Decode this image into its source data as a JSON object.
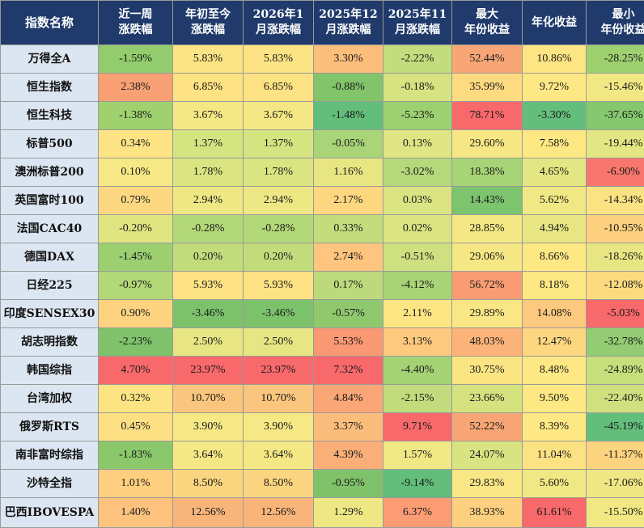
{
  "columns": [
    {
      "line1": "指数名称",
      "line2": ""
    },
    {
      "line1": "近一周",
      "line2": "涨跌幅"
    },
    {
      "line1": "年初至今",
      "line2": "涨跌幅"
    },
    {
      "line1": "2026年1",
      "line2": "月涨跌幅"
    },
    {
      "line1": "2025年12",
      "line2": "月涨跌幅"
    },
    {
      "line1": "2025年11",
      "line2": "月涨跌幅"
    },
    {
      "line1": "最大",
      "line2": "年份收益"
    },
    {
      "line1": "年化收益",
      "line2": ""
    },
    {
      "line1": "最小",
      "line2": "年份收益"
    }
  ],
  "rows": [
    {
      "name": "万得全A",
      "cells": [
        {
          "v": "-1.59%",
          "bg": "#92cc6c"
        },
        {
          "v": "5.83%",
          "bg": "#fce383"
        },
        {
          "v": "5.83%",
          "bg": "#fce383"
        },
        {
          "v": "3.30%",
          "bg": "#fcbe7b"
        },
        {
          "v": "-2.22%",
          "bg": "#c3dc7d"
        },
        {
          "v": "52.44%",
          "bg": "#f8a676"
        },
        {
          "v": "10.86%",
          "bg": "#fde583"
        },
        {
          "v": "-28.25%",
          "bg": "#9fd070"
        }
      ]
    },
    {
      "name": "恒生指数",
      "cells": [
        {
          "v": "2.38%",
          "bg": "#f8a073"
        },
        {
          "v": "6.85%",
          "bg": "#fce282"
        },
        {
          "v": "6.85%",
          "bg": "#fce282"
        },
        {
          "v": "-0.88%",
          "bg": "#82c46a"
        },
        {
          "v": "-0.18%",
          "bg": "#d7e281"
        },
        {
          "v": "35.99%",
          "bg": "#fedb81"
        },
        {
          "v": "9.72%",
          "bg": "#fee884"
        },
        {
          "v": "-15.46%",
          "bg": "#f1e884"
        }
      ]
    },
    {
      "name": "恒生科技",
      "cells": [
        {
          "v": "-1.38%",
          "bg": "#9fd16e"
        },
        {
          "v": "3.67%",
          "bg": "#f4e884"
        },
        {
          "v": "3.67%",
          "bg": "#f4e884"
        },
        {
          "v": "-1.48%",
          "bg": "#63be7b"
        },
        {
          "v": "-5.23%",
          "bg": "#9cd071"
        },
        {
          "v": "78.71%",
          "bg": "#f8696b"
        },
        {
          "v": "-3.30%",
          "bg": "#63be7b"
        },
        {
          "v": "-37.65%",
          "bg": "#86c86f"
        }
      ]
    },
    {
      "name": "标普500",
      "cells": [
        {
          "v": "0.34%",
          "bg": "#fde383"
        },
        {
          "v": "1.37%",
          "bg": "#d4e480"
        },
        {
          "v": "1.37%",
          "bg": "#d4e480"
        },
        {
          "v": "-0.05%",
          "bg": "#a9d477"
        },
        {
          "v": "0.13%",
          "bg": "#dfe582"
        },
        {
          "v": "29.60%",
          "bg": "#f7e784"
        },
        {
          "v": "7.58%",
          "bg": "#fee884"
        },
        {
          "v": "-19.44%",
          "bg": "#e3e683"
        }
      ]
    },
    {
      "name": "澳洲标普200",
      "cells": [
        {
          "v": "0.10%",
          "bg": "#f6e884"
        },
        {
          "v": "1.78%",
          "bg": "#dae581"
        },
        {
          "v": "1.78%",
          "bg": "#dae581"
        },
        {
          "v": "1.16%",
          "bg": "#e7e683"
        },
        {
          "v": "-3.02%",
          "bg": "#b4d87a"
        },
        {
          "v": "18.38%",
          "bg": "#a7d476"
        },
        {
          "v": "4.65%",
          "bg": "#e4e683"
        },
        {
          "v": "-6.90%",
          "bg": "#f8766d"
        }
      ]
    },
    {
      "name": "英国富时100",
      "cells": [
        {
          "v": "0.79%",
          "bg": "#fdd880"
        },
        {
          "v": "2.94%",
          "bg": "#ede784"
        },
        {
          "v": "2.94%",
          "bg": "#ede784"
        },
        {
          "v": "2.17%",
          "bg": "#fcd77f"
        },
        {
          "v": "0.03%",
          "bg": "#dbe482"
        },
        {
          "v": "14.43%",
          "bg": "#7cc46e"
        },
        {
          "v": "5.62%",
          "bg": "#f0e884"
        },
        {
          "v": "-14.34%",
          "bg": "#fbe383"
        }
      ]
    },
    {
      "name": "法国CAC40",
      "cells": [
        {
          "v": "-0.20%",
          "bg": "#e0e582"
        },
        {
          "v": "-0.28%",
          "bg": "#b3d878"
        },
        {
          "v": "-0.28%",
          "bg": "#b3d878"
        },
        {
          "v": "0.33%",
          "bg": "#c4dc7c"
        },
        {
          "v": "0.02%",
          "bg": "#dbe482"
        },
        {
          "v": "28.85%",
          "bg": "#f4e884"
        },
        {
          "v": "4.94%",
          "bg": "#e7e683"
        },
        {
          "v": "-10.95%",
          "bg": "#fcd07e"
        }
      ]
    },
    {
      "name": "德国DAX",
      "cells": [
        {
          "v": "-1.45%",
          "bg": "#9bcf6f"
        },
        {
          "v": "0.20%",
          "bg": "#c2dc7c"
        },
        {
          "v": "0.20%",
          "bg": "#c2dc7c"
        },
        {
          "v": "2.74%",
          "bg": "#fdc57d"
        },
        {
          "v": "-0.51%",
          "bg": "#cfe080"
        },
        {
          "v": "29.06%",
          "bg": "#f5e884"
        },
        {
          "v": "8.66%",
          "bg": "#fee884"
        },
        {
          "v": "-18.26%",
          "bg": "#e8e683"
        }
      ]
    },
    {
      "name": "日经225",
      "cells": [
        {
          "v": "-0.97%",
          "bg": "#b2d877"
        },
        {
          "v": "5.93%",
          "bg": "#fce282"
        },
        {
          "v": "5.93%",
          "bg": "#fce282"
        },
        {
          "v": "0.17%",
          "bg": "#bcda7b"
        },
        {
          "v": "-4.12%",
          "bg": "#a8d476"
        },
        {
          "v": "56.72%",
          "bg": "#f99c74"
        },
        {
          "v": "8.18%",
          "bg": "#fee884"
        },
        {
          "v": "-12.08%",
          "bg": "#fcdb80"
        }
      ]
    },
    {
      "name": "印度SENSEX30",
      "cells": [
        {
          "v": "0.90%",
          "bg": "#fdd37f"
        },
        {
          "v": "-3.46%",
          "bg": "#7cc26b"
        },
        {
          "v": "-3.46%",
          "bg": "#7cc26b"
        },
        {
          "v": "-0.57%",
          "bg": "#90c86e"
        },
        {
          "v": "2.11%",
          "bg": "#fde583"
        },
        {
          "v": "29.89%",
          "bg": "#f8e784"
        },
        {
          "v": "14.08%",
          "bg": "#fdc97e"
        },
        {
          "v": "-5.03%",
          "bg": "#f8696b"
        }
      ]
    },
    {
      "name": "胡志明指数",
      "cells": [
        {
          "v": "-2.23%",
          "bg": "#7fc26b"
        },
        {
          "v": "2.50%",
          "bg": "#e7e683"
        },
        {
          "v": "2.50%",
          "bg": "#e7e683"
        },
        {
          "v": "5.53%",
          "bg": "#fa9873"
        },
        {
          "v": "3.13%",
          "bg": "#fdc97e"
        },
        {
          "v": "48.03%",
          "bg": "#fbb379"
        },
        {
          "v": "12.47%",
          "bg": "#fdd780"
        },
        {
          "v": "-32.78%",
          "bg": "#93cc72"
        }
      ]
    },
    {
      "name": "韩国综指",
      "cells": [
        {
          "v": "4.70%",
          "bg": "#f8696b"
        },
        {
          "v": "23.97%",
          "bg": "#f8696b"
        },
        {
          "v": "23.97%",
          "bg": "#f8696b"
        },
        {
          "v": "7.32%",
          "bg": "#f8696b"
        },
        {
          "v": "-4.40%",
          "bg": "#a4d274"
        },
        {
          "v": "30.75%",
          "bg": "#fbe583"
        },
        {
          "v": "8.48%",
          "bg": "#fee884"
        },
        {
          "v": "-24.89%",
          "bg": "#c6de7c"
        }
      ]
    },
    {
      "name": "台湾加权",
      "cells": [
        {
          "v": "0.32%",
          "bg": "#fde483"
        },
        {
          "v": "10.70%",
          "bg": "#fac57d"
        },
        {
          "v": "10.70%",
          "bg": "#fac57d"
        },
        {
          "v": "4.84%",
          "bg": "#fba676"
        },
        {
          "v": "-2.15%",
          "bg": "#c2dc7d"
        },
        {
          "v": "23.66%",
          "bg": "#d5e280"
        },
        {
          "v": "9.50%",
          "bg": "#fee884"
        },
        {
          "v": "-22.40%",
          "bg": "#d1e07f"
        }
      ]
    },
    {
      "name": "俄罗斯RTS",
      "cells": [
        {
          "v": "0.45%",
          "bg": "#fde083"
        },
        {
          "v": "3.90%",
          "bg": "#f6e884"
        },
        {
          "v": "3.90%",
          "bg": "#f6e884"
        },
        {
          "v": "3.37%",
          "bg": "#fbbd7b"
        },
        {
          "v": "9.71%",
          "bg": "#f8696b"
        },
        {
          "v": "52.22%",
          "bg": "#f8a676"
        },
        {
          "v": "8.39%",
          "bg": "#fee884"
        },
        {
          "v": "-45.19%",
          "bg": "#63be7b"
        }
      ]
    },
    {
      "name": "南非富时综指",
      "cells": [
        {
          "v": "-1.83%",
          "bg": "#8bc86b"
        },
        {
          "v": "3.64%",
          "bg": "#f4e884"
        },
        {
          "v": "3.64%",
          "bg": "#f4e884"
        },
        {
          "v": "4.39%",
          "bg": "#fbaf78"
        },
        {
          "v": "1.57%",
          "bg": "#f0e884"
        },
        {
          "v": "24.07%",
          "bg": "#d8e381"
        },
        {
          "v": "11.04%",
          "bg": "#fde284"
        },
        {
          "v": "-11.37%",
          "bg": "#fcd47f"
        }
      ]
    },
    {
      "name": "沙特全指",
      "cells": [
        {
          "v": "1.01%",
          "bg": "#fdcf7f"
        },
        {
          "v": "8.50%",
          "bg": "#fbd580"
        },
        {
          "v": "8.50%",
          "bg": "#fbd580"
        },
        {
          "v": "-0.95%",
          "bg": "#7fc26a"
        },
        {
          "v": "-9.14%",
          "bg": "#63be7b"
        },
        {
          "v": "29.83%",
          "bg": "#f8e784"
        },
        {
          "v": "5.60%",
          "bg": "#f0e884"
        },
        {
          "v": "-17.06%",
          "bg": "#eee784"
        }
      ]
    },
    {
      "name": "巴西IBOVESPA",
      "cells": [
        {
          "v": "1.40%",
          "bg": "#fdc27d"
        },
        {
          "v": "12.56%",
          "bg": "#f9b579"
        },
        {
          "v": "12.56%",
          "bg": "#f9b579"
        },
        {
          "v": "1.29%",
          "bg": "#eee784"
        },
        {
          "v": "6.37%",
          "bg": "#fb9c74"
        },
        {
          "v": "38.93%",
          "bg": "#fdd07f"
        },
        {
          "v": "61.61%",
          "bg": "#f8696b"
        },
        {
          "v": "-15.50%",
          "bg": "#f1e884"
        }
      ]
    }
  ]
}
